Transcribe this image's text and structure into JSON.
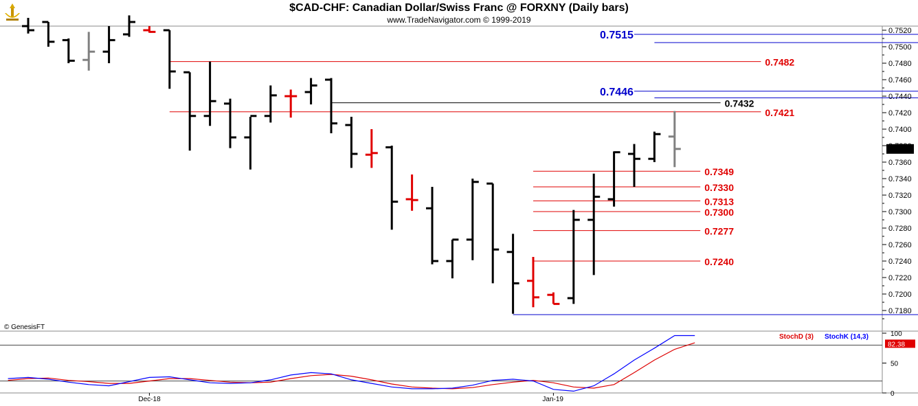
{
  "header": {
    "title": "$CAD-CHF:  Canadian Dollar/Swiss Franc @ FORXNY  (Daily bars)",
    "subtitle": "www.TradeNavigator.com © 1999-2019"
  },
  "copyright": "© GenesisFT",
  "colors": {
    "black": "#000000",
    "red": "#e00000",
    "gray": "#808080",
    "blue": "#0000cc",
    "stoch_k": "#0000ff",
    "stoch_d": "#dd0000"
  },
  "chart_data": {
    "type": "ohlc",
    "ylim": [
      0.7165,
      0.7525
    ],
    "y_ticks": [
      "0.7520",
      "0.7500",
      "0.7480",
      "0.7460",
      "0.7440",
      "0.7420",
      "0.7400",
      "0.7380",
      "0.7360",
      "0.7340",
      "0.7320",
      "0.7300",
      "0.7280",
      "0.7260",
      "0.7240",
      "0.7220",
      "0.7200",
      "0.7180"
    ],
    "last_price": "0.7376",
    "x_labels": [
      {
        "label": "Dec-18",
        "index": 6
      },
      {
        "label": "Jan-19",
        "index": 26
      }
    ],
    "bars": [
      {
        "o": 0.7525,
        "h": 0.7535,
        "l": 0.7516,
        "c": 0.752,
        "color": "black"
      },
      {
        "o": 0.753,
        "h": 0.753,
        "l": 0.75,
        "c": 0.7506,
        "color": "black"
      },
      {
        "o": 0.7508,
        "h": 0.751,
        "l": 0.748,
        "c": 0.7483,
        "color": "black"
      },
      {
        "o": 0.7484,
        "h": 0.7518,
        "l": 0.7471,
        "c": 0.7494,
        "color": "gray"
      },
      {
        "o": 0.7494,
        "h": 0.7525,
        "l": 0.748,
        "c": 0.7508,
        "color": "black"
      },
      {
        "o": 0.7515,
        "h": 0.7538,
        "l": 0.7512,
        "c": 0.753,
        "color": "black"
      },
      {
        "o": 0.752,
        "h": 0.7525,
        "l": 0.7517,
        "c": 0.7518,
        "color": "red"
      },
      {
        "o": 0.752,
        "h": 0.752,
        "l": 0.7449,
        "c": 0.747,
        "color": "black"
      },
      {
        "o": 0.7469,
        "h": 0.7469,
        "l": 0.7374,
        "c": 0.7416,
        "color": "black"
      },
      {
        "o": 0.7416,
        "h": 0.7482,
        "l": 0.7404,
        "c": 0.7434,
        "color": "black"
      },
      {
        "o": 0.7431,
        "h": 0.7437,
        "l": 0.7377,
        "c": 0.739,
        "color": "black"
      },
      {
        "o": 0.739,
        "h": 0.7415,
        "l": 0.7351,
        "c": 0.7416,
        "color": "black"
      },
      {
        "o": 0.7416,
        "h": 0.7453,
        "l": 0.7408,
        "c": 0.7441,
        "color": "black"
      },
      {
        "o": 0.744,
        "h": 0.7448,
        "l": 0.7414,
        "c": 0.744,
        "color": "red"
      },
      {
        "o": 0.7445,
        "h": 0.7462,
        "l": 0.743,
        "c": 0.7453,
        "color": "black"
      },
      {
        "o": 0.746,
        "h": 0.7462,
        "l": 0.7395,
        "c": 0.7407,
        "color": "black"
      },
      {
        "o": 0.7405,
        "h": 0.7415,
        "l": 0.7353,
        "c": 0.737,
        "color": "black"
      },
      {
        "o": 0.7369,
        "h": 0.74,
        "l": 0.7353,
        "c": 0.7371,
        "color": "red"
      },
      {
        "o": 0.7378,
        "h": 0.738,
        "l": 0.7278,
        "c": 0.7312,
        "color": "black"
      },
      {
        "o": 0.7315,
        "h": 0.7345,
        "l": 0.7301,
        "c": 0.7314,
        "color": "red"
      },
      {
        "o": 0.7304,
        "h": 0.733,
        "l": 0.7236,
        "c": 0.724,
        "color": "black"
      },
      {
        "o": 0.724,
        "h": 0.7266,
        "l": 0.7219,
        "c": 0.7266,
        "color": "black"
      },
      {
        "o": 0.7266,
        "h": 0.734,
        "l": 0.7241,
        "c": 0.7336,
        "color": "black"
      },
      {
        "o": 0.7334,
        "h": 0.7334,
        "l": 0.7213,
        "c": 0.7254,
        "color": "black"
      },
      {
        "o": 0.7251,
        "h": 0.7273,
        "l": 0.7176,
        "c": 0.7213,
        "color": "black"
      },
      {
        "o": 0.7216,
        "h": 0.7245,
        "l": 0.7184,
        "c": 0.7196,
        "color": "red"
      },
      {
        "o": 0.7199,
        "h": 0.7202,
        "l": 0.7188,
        "c": 0.7188,
        "color": "red"
      },
      {
        "o": 0.7195,
        "h": 0.7302,
        "l": 0.7188,
        "c": 0.729,
        "color": "black"
      },
      {
        "o": 0.729,
        "h": 0.7346,
        "l": 0.7223,
        "c": 0.7318,
        "color": "black"
      },
      {
        "o": 0.7315,
        "h": 0.7373,
        "l": 0.7306,
        "c": 0.7372,
        "color": "black"
      },
      {
        "o": 0.737,
        "h": 0.7382,
        "l": 0.733,
        "c": 0.7364,
        "color": "black"
      },
      {
        "o": 0.7364,
        "h": 0.7397,
        "l": 0.736,
        "c": 0.7394,
        "color": "black"
      },
      {
        "o": 0.7391,
        "h": 0.7422,
        "l": 0.7354,
        "c": 0.7376,
        "color": "gray"
      }
    ],
    "levels": [
      {
        "value": 0.7515,
        "label": "0.7515",
        "color": "blue",
        "from": 30,
        "to": 47,
        "label_side": "left",
        "label_index": 30
      },
      {
        "value": 0.7505,
        "label": "0.7505",
        "color": "blue",
        "from": 31,
        "to": 47,
        "label_side": "right",
        "label_index": 47
      },
      {
        "value": 0.7482,
        "label": "0.7482",
        "color": "red",
        "from": 7,
        "to": 36,
        "label_side": "right",
        "label_index": 36
      },
      {
        "value": 0.7446,
        "label": "0.7446",
        "color": "blue",
        "from": 30,
        "to": 47,
        "label_side": "left",
        "label_index": 30
      },
      {
        "value": 0.7438,
        "label": "0.7438",
        "color": "blue",
        "from": 31,
        "to": 47,
        "label_side": "right",
        "label_index": 47
      },
      {
        "value": 0.7432,
        "label": "0.7432",
        "color": "black",
        "from": 15,
        "to": 34,
        "label_side": "right",
        "label_index": 34
      },
      {
        "value": 0.7421,
        "label": "0.7421",
        "color": "red",
        "from": 7,
        "to": 36,
        "label_side": "right",
        "label_index": 36
      },
      {
        "value": 0.7349,
        "label": "0.7349",
        "color": "red",
        "from": 25,
        "to": 33,
        "label_side": "right",
        "label_index": 33
      },
      {
        "value": 0.733,
        "label": "0.7330",
        "color": "red",
        "from": 25,
        "to": 33,
        "label_side": "right",
        "label_index": 33
      },
      {
        "value": 0.7313,
        "label": "0.7313",
        "color": "red",
        "from": 25,
        "to": 33,
        "label_side": "right",
        "label_index": 33
      },
      {
        "value": 0.73,
        "label": "0.7300",
        "color": "red",
        "from": 25,
        "to": 33,
        "label_side": "right",
        "label_index": 33
      },
      {
        "value": 0.7277,
        "label": "0.7277",
        "color": "red",
        "from": 25,
        "to": 33,
        "label_side": "right",
        "label_index": 33
      },
      {
        "value": 0.724,
        "label": "0.7240",
        "color": "red",
        "from": 25,
        "to": 33,
        "label_side": "right",
        "label_index": 33
      },
      {
        "value": 0.7175,
        "label": "0.7175",
        "color": "blue",
        "from": 24,
        "to": 47,
        "label_side": "right",
        "label_index": 47
      }
    ],
    "stochastic": {
      "label_d": "StochD (3)",
      "label_k": "StochK (14,3)",
      "current": "82.38",
      "y_ticks": [
        "100",
        "50",
        "0"
      ],
      "upper": 80,
      "lower": 20,
      "k": [
        [
          -1,
          24
        ],
        [
          0,
          26
        ],
        [
          1,
          23
        ],
        [
          2,
          18
        ],
        [
          3,
          14
        ],
        [
          4,
          12
        ],
        [
          5,
          19
        ],
        [
          6,
          26
        ],
        [
          7,
          27
        ],
        [
          8,
          22
        ],
        [
          9,
          17
        ],
        [
          10,
          16
        ],
        [
          11,
          17
        ],
        [
          12,
          22
        ],
        [
          13,
          30
        ],
        [
          14,
          34
        ],
        [
          15,
          32
        ],
        [
          16,
          22
        ],
        [
          17,
          16
        ],
        [
          18,
          10
        ],
        [
          19,
          7
        ],
        [
          20,
          7
        ],
        [
          21,
          8
        ],
        [
          22,
          13
        ],
        [
          23,
          21
        ],
        [
          24,
          23
        ],
        [
          25,
          20
        ],
        [
          26,
          6
        ],
        [
          27,
          3
        ],
        [
          28,
          12
        ],
        [
          29,
          32
        ],
        [
          30,
          55
        ],
        [
          31,
          75
        ],
        [
          32,
          96
        ],
        [
          33,
          96
        ]
      ],
      "d": [
        [
          -1,
          21
        ],
        [
          0,
          24
        ],
        [
          1,
          25
        ],
        [
          2,
          21
        ],
        [
          3,
          19
        ],
        [
          4,
          16
        ],
        [
          5,
          16
        ],
        [
          6,
          20
        ],
        [
          7,
          24
        ],
        [
          8,
          24
        ],
        [
          9,
          21
        ],
        [
          10,
          18
        ],
        [
          11,
          17
        ],
        [
          12,
          18
        ],
        [
          13,
          24
        ],
        [
          14,
          29
        ],
        [
          15,
          31
        ],
        [
          16,
          28
        ],
        [
          17,
          22
        ],
        [
          18,
          15
        ],
        [
          19,
          10
        ],
        [
          20,
          8
        ],
        [
          21,
          7
        ],
        [
          22,
          9
        ],
        [
          23,
          14
        ],
        [
          24,
          18
        ],
        [
          25,
          21
        ],
        [
          26,
          17
        ],
        [
          27,
          10
        ],
        [
          28,
          8
        ],
        [
          29,
          14
        ],
        [
          30,
          34
        ],
        [
          31,
          55
        ],
        [
          32,
          73
        ],
        [
          33,
          84
        ]
      ]
    }
  }
}
